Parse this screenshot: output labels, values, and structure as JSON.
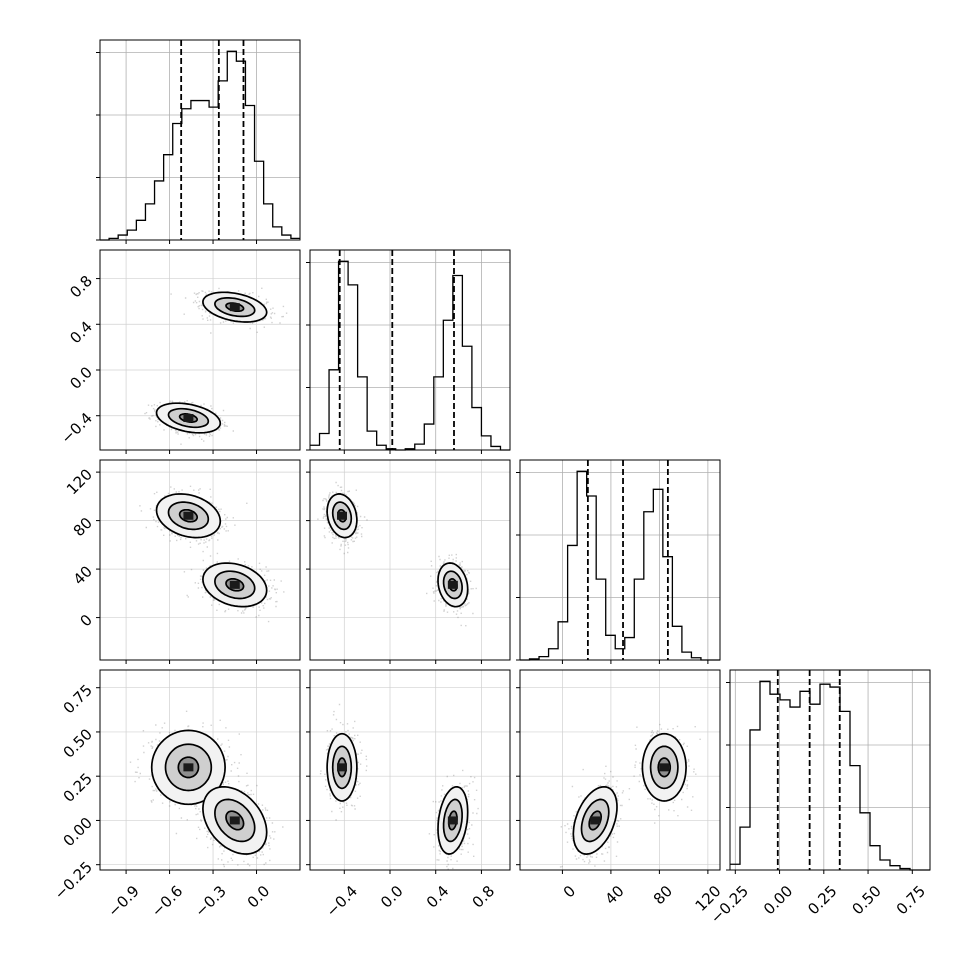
{
  "chart_data": {
    "type": "corner",
    "n_params": 4,
    "grid": true,
    "ticks": [
      {
        "values": [
          -0.9,
          -0.6,
          -0.3,
          0.0
        ],
        "labels": [
          "−0.9",
          "−0.6",
          "−0.3",
          "0.0"
        ]
      },
      {
        "values": [
          -0.4,
          0.0,
          0.4,
          0.8
        ],
        "labels": [
          "−0.4",
          "0.0",
          "0.4",
          "0.8"
        ]
      },
      {
        "values": [
          0,
          40,
          80,
          120
        ],
        "labels": [
          "0",
          "40",
          "80",
          "120"
        ]
      },
      {
        "values": [
          -0.25,
          0.0,
          0.25,
          0.5,
          0.75
        ],
        "labels": [
          "−0.25",
          "0.00",
          "0.25",
          "0.50",
          "0.75"
        ]
      }
    ],
    "ranges": [
      [
        -1.08,
        0.3
      ],
      [
        -0.7,
        1.05
      ],
      [
        -35,
        130
      ],
      [
        -0.28,
        0.85
      ]
    ],
    "quantiles": [
      [
        -0.52,
        -0.26,
        -0.09
      ],
      [
        -0.44,
        0.02,
        0.56
      ],
      [
        21,
        50,
        87
      ],
      [
        -0.01,
        0.17,
        0.34
      ]
    ],
    "histograms": [
      {
        "edges": [
          -1.08,
          0.3
        ],
        "counts": [
          0,
          1,
          3,
          6,
          12,
          22,
          36,
          52,
          71,
          80,
          85,
          85,
          81,
          97,
          115,
          109,
          82,
          48,
          22,
          8,
          3,
          1
        ]
      },
      {
        "edges": [
          -0.7,
          1.05
        ],
        "counts": [
          4,
          14,
          68,
          160,
          140,
          62,
          16,
          4,
          1,
          0,
          1,
          5,
          22,
          62,
          110,
          148,
          88,
          36,
          12,
          3,
          0
        ]
      },
      {
        "edges": [
          -35,
          130
        ],
        "counts": [
          0,
          1,
          3,
          10,
          34,
          102,
          168,
          146,
          72,
          22,
          10,
          20,
          72,
          132,
          152,
          92,
          30,
          7,
          2,
          0,
          0
        ]
      },
      {
        "edges": [
          -0.28,
          0.85
        ],
        "counts": [
          4,
          30,
          98,
          132,
          123,
          119,
          114,
          125,
          116,
          130,
          128,
          111,
          73,
          40,
          17,
          7,
          3,
          1,
          0,
          0
        ]
      }
    ],
    "modes": [
      [
        -0.47,
        -0.42,
        84,
        0.3
      ],
      [
        -0.15,
        0.55,
        27,
        0.0
      ]
    ]
  }
}
